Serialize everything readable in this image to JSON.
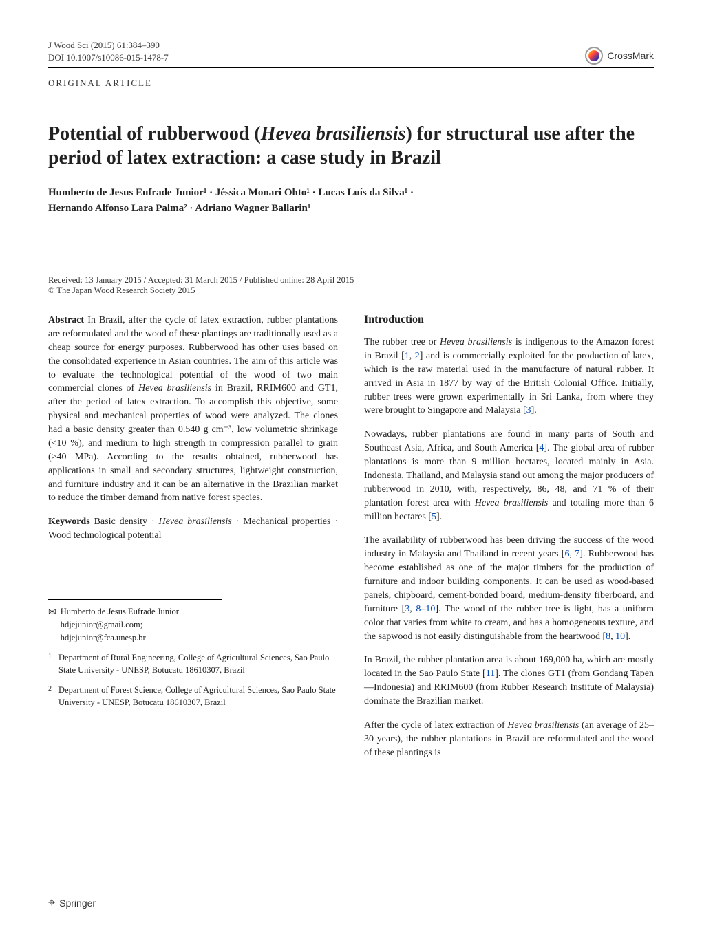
{
  "header": {
    "journal_ref": "J Wood Sci (2015) 61:384–390",
    "doi": "DOI 10.1007/s10086-015-1478-7",
    "article_type": "ORIGINAL ARTICLE",
    "crossmark": "CrossMark"
  },
  "title": "Potential of rubberwood (Hevea brasiliensis) for structural use after the period of latex extraction: a case study in Brazil",
  "title_part1": "Potential of rubberwood (",
  "title_species": "Hevea brasiliensis",
  "title_part2": ") for structural use after the period of latex extraction: a case study in Brazil",
  "authors_line1": "Humberto de Jesus Eufrade Junior¹ · Jéssica Monari Ohto¹ · Lucas Luís da Silva¹ ·",
  "authors_line2": "Hernando Alfonso Lara Palma² · Adriano Wagner Ballarin¹",
  "dates": "Received: 13 January 2015 / Accepted: 31 March 2015 / Published online: 28 April 2015",
  "copyright": "© The Japan Wood Research Society 2015",
  "abstract": {
    "label": "Abstract",
    "text_a": "  In Brazil, after the cycle of latex extraction, rubber plantations are reformulated and the wood of these plantings are traditionally used as a cheap source for energy purposes. Rubberwood has other uses based on the consolidated experience in Asian countries. The aim of this article was to evaluate the technological potential of the wood of two main commercial clones of ",
    "text_species": "Hevea brasiliensis",
    "text_b": " in Brazil, RRIM600 and GT1, after the period of latex extraction. To accomplish this objective, some physical and mechanical properties of wood were analyzed. The clones had a basic density greater than 0.540 g cm⁻³, low volumetric shrinkage (<10 %), and medium to high strength in compression parallel to grain (>40 MPa). According to the results obtained, rubberwood has applications in small and secondary structures, lightweight construction, and furniture industry and it can be an alternative in the Brazilian market to reduce the timber demand from native forest species."
  },
  "keywords": {
    "label": "Keywords",
    "text_a": "  Basic density · ",
    "text_species": "Hevea brasiliensis",
    "text_b": " · Mechanical properties · Wood technological potential"
  },
  "correspondence": {
    "name": "Humberto de Jesus Eufrade Junior",
    "emails": "hdjejunior@gmail.com; hdjejunior@fca.unesp.br"
  },
  "affiliations": [
    {
      "num": "1",
      "text": "Department of Rural Engineering, College of Agricultural Sciences, Sao Paulo State University - UNESP, Botucatu 18610307, Brazil"
    },
    {
      "num": "2",
      "text": "Department of Forest Science, College of Agricultural Sciences, Sao Paulo State University - UNESP, Botucatu 18610307, Brazil"
    }
  ],
  "intro": {
    "heading": "Introduction",
    "p1_a": "The rubber tree or ",
    "p1_species": "Hevea brasiliensis",
    "p1_b": " is indigenous to the Amazon forest in Brazil [",
    "p1_ref1": "1",
    "p1_c": ", ",
    "p1_ref2": "2",
    "p1_d": "] and is commercially exploited for the production of latex, which is the raw material used in the manufacture of natural rubber. It arrived in Asia in 1877 by way of the British Colonial Office. Initially, rubber trees were grown experimentally in Sri Lanka, from where they were brought to Singapore and Malaysia [",
    "p1_ref3": "3",
    "p1_e": "].",
    "p2_a": "Nowadays, rubber plantations are found in many parts of South and Southeast Asia, Africa, and South America [",
    "p2_ref4": "4",
    "p2_b": "]. The global area of rubber plantations is more than 9 million hectares, located mainly in Asia. Indonesia, Thailand, and Malaysia stand out among the major producers of rubberwood in 2010, with, respectively, 86, 48, and 71 % of their plantation forest area with ",
    "p2_species": "Hevea brasiliensis",
    "p2_c": " and totaling more than 6 million hectares [",
    "p2_ref5": "5",
    "p2_d": "].",
    "p3_a": "The availability of rubberwood has been driving the success of the wood industry in Malaysia and Thailand in recent years [",
    "p3_ref6": "6",
    "p3_b": ", ",
    "p3_ref7": "7",
    "p3_c": "]. Rubberwood has become established as one of the major timbers for the production of furniture and indoor building components. It can be used as wood-based panels, chipboard, cement-bonded board, medium-density fiberboard, and furniture [",
    "p3_ref3": "3",
    "p3_d": ", ",
    "p3_ref8": "8",
    "p3_e": "–",
    "p3_ref10": "10",
    "p3_f": "]. The wood of the rubber tree is light, has a uniform color that varies from white to cream, and has a homogeneous texture, and the sapwood is not easily distinguishable from the heartwood [",
    "p3_ref8b": "8",
    "p3_g": ", ",
    "p3_ref10b": "10",
    "p3_h": "].",
    "p4_a": "In Brazil, the rubber plantation area is about 169,000 ha, which are mostly located in the Sao Paulo State [",
    "p4_ref11": "11",
    "p4_b": "]. The clones GT1 (from Gondang Tapen—Indonesia) and RRIM600 (from Rubber Research Institute of Malaysia) dominate the Brazilian market.",
    "p5_a": "After the cycle of latex extraction of ",
    "p5_species": "Hevea brasiliensis",
    "p5_b": " (an average of 25–30 years), the rubber plantations in Brazil are reformulated and the wood of these plantings is"
  },
  "footer": {
    "springer": "Springer"
  },
  "colors": {
    "link": "#0047b3",
    "text": "#222222"
  },
  "typography": {
    "title_fontsize": 28,
    "body_fontsize": 14,
    "authors_fontsize": 15,
    "small_fontsize": 12.5
  }
}
